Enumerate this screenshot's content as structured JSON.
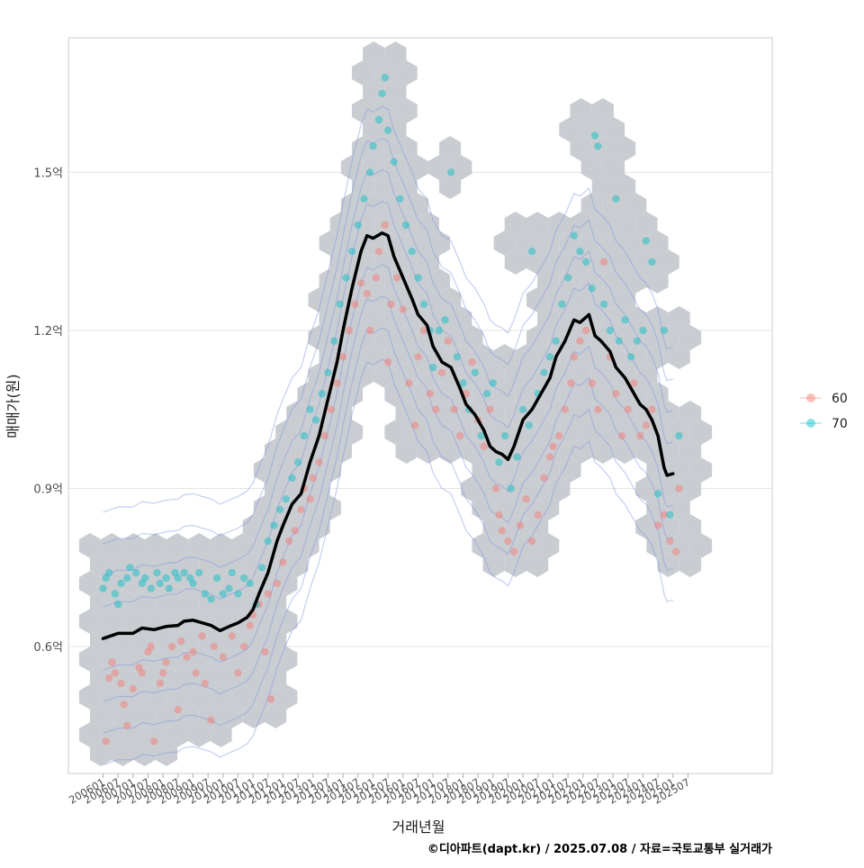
{
  "chart_data": {
    "type": "scatter",
    "xlabel": "거래년월",
    "ylabel": "매매가(원)",
    "caption": "©디아파트(dapt.kr) / 2025.07.08 / 자료=국토교통부 실거래가",
    "x_ticks": [
      "200601",
      "200607",
      "200701",
      "200707",
      "200801",
      "200807",
      "200901",
      "200907",
      "201001",
      "201007",
      "201101",
      "201107",
      "201201",
      "201207",
      "201301",
      "201307",
      "201401",
      "201407",
      "201501",
      "201507",
      "201601",
      "201607",
      "201701",
      "201707",
      "201801",
      "201807",
      "201901",
      "201907",
      "202001",
      "202007",
      "202101",
      "202107",
      "202201",
      "202207",
      "202301",
      "202307",
      "202401",
      "202407",
      "202501",
      "202507"
    ],
    "y_ticks": [
      {
        "value": 0.6,
        "label": "0.6억"
      },
      {
        "value": 0.9,
        "label": "0.9억"
      },
      {
        "value": 1.2,
        "label": "1.2억"
      },
      {
        "value": 1.5,
        "label": "1.5억"
      }
    ],
    "xlim": [
      2005.5,
      2026.8
    ],
    "ylim": [
      0.365,
      1.755
    ],
    "grid": true,
    "legend_position": "right",
    "legend": [
      {
        "name": "60",
        "color": "#F8766D"
      },
      {
        "name": "70",
        "color": "#00BFC4"
      }
    ],
    "series": [
      {
        "name": "60",
        "points": [
          [
            2006.1,
            0.42
          ],
          [
            2006.2,
            0.54
          ],
          [
            2006.3,
            0.57
          ],
          [
            2006.4,
            0.55
          ],
          [
            2006.6,
            0.53
          ],
          [
            2006.7,
            0.49
          ],
          [
            2006.8,
            0.45
          ],
          [
            2007.0,
            0.52
          ],
          [
            2007.2,
            0.56
          ],
          [
            2007.3,
            0.55
          ],
          [
            2007.5,
            0.59
          ],
          [
            2007.6,
            0.6
          ],
          [
            2007.7,
            0.42
          ],
          [
            2007.9,
            0.53
          ],
          [
            2008.0,
            0.55
          ],
          [
            2008.1,
            0.57
          ],
          [
            2008.3,
            0.6
          ],
          [
            2008.5,
            0.48
          ],
          [
            2008.6,
            0.61
          ],
          [
            2008.8,
            0.58
          ],
          [
            2009.0,
            0.59
          ],
          [
            2009.1,
            0.55
          ],
          [
            2009.3,
            0.62
          ],
          [
            2009.4,
            0.53
          ],
          [
            2009.6,
            0.46
          ],
          [
            2009.7,
            0.6
          ],
          [
            2010.0,
            0.58
          ],
          [
            2010.3,
            0.62
          ],
          [
            2010.5,
            0.55
          ],
          [
            2010.7,
            0.6
          ],
          [
            2010.9,
            0.64
          ],
          [
            2011.0,
            0.66
          ],
          [
            2011.2,
            0.68
          ],
          [
            2011.4,
            0.59
          ],
          [
            2011.5,
            0.7
          ],
          [
            2011.6,
            0.5
          ],
          [
            2011.8,
            0.72
          ],
          [
            2012.0,
            0.76
          ],
          [
            2012.2,
            0.8
          ],
          [
            2012.4,
            0.82
          ],
          [
            2012.6,
            0.86
          ],
          [
            2012.7,
            0.9
          ],
          [
            2012.9,
            0.88
          ],
          [
            2013.0,
            0.92
          ],
          [
            2013.2,
            0.95
          ],
          [
            2013.4,
            1.0
          ],
          [
            2013.6,
            1.05
          ],
          [
            2013.8,
            1.1
          ],
          [
            2014.0,
            1.15
          ],
          [
            2014.2,
            1.2
          ],
          [
            2014.4,
            1.25
          ],
          [
            2014.6,
            1.29
          ],
          [
            2014.8,
            1.27
          ],
          [
            2014.9,
            1.2
          ],
          [
            2015.1,
            1.3
          ],
          [
            2015.2,
            1.35
          ],
          [
            2015.4,
            1.4
          ],
          [
            2015.5,
            1.14
          ],
          [
            2015.6,
            1.25
          ],
          [
            2015.8,
            1.3
          ],
          [
            2016.0,
            1.24
          ],
          [
            2016.2,
            1.1
          ],
          [
            2016.4,
            1.02
          ],
          [
            2016.5,
            1.15
          ],
          [
            2016.7,
            1.2
          ],
          [
            2016.9,
            1.08
          ],
          [
            2017.1,
            1.05
          ],
          [
            2017.3,
            1.12
          ],
          [
            2017.5,
            1.18
          ],
          [
            2017.7,
            1.05
          ],
          [
            2017.9,
            1.0
          ],
          [
            2018.1,
            1.08
          ],
          [
            2018.3,
            1.14
          ],
          [
            2018.5,
            1.03
          ],
          [
            2018.7,
            0.98
          ],
          [
            2018.9,
            1.05
          ],
          [
            2019.1,
            0.9
          ],
          [
            2019.2,
            0.85
          ],
          [
            2019.3,
            0.82
          ],
          [
            2019.5,
            0.8
          ],
          [
            2019.7,
            0.78
          ],
          [
            2019.9,
            0.83
          ],
          [
            2020.1,
            0.88
          ],
          [
            2020.3,
            0.8
          ],
          [
            2020.5,
            0.85
          ],
          [
            2020.7,
            0.92
          ],
          [
            2020.9,
            0.96
          ],
          [
            2021.0,
            0.98
          ],
          [
            2021.2,
            1.0
          ],
          [
            2021.4,
            1.05
          ],
          [
            2021.6,
            1.1
          ],
          [
            2021.7,
            1.15
          ],
          [
            2021.9,
            1.18
          ],
          [
            2022.1,
            1.2
          ],
          [
            2022.3,
            1.1
          ],
          [
            2022.5,
            1.05
          ],
          [
            2022.7,
            1.33
          ],
          [
            2022.9,
            1.15
          ],
          [
            2023.1,
            1.08
          ],
          [
            2023.3,
            1.0
          ],
          [
            2023.5,
            1.05
          ],
          [
            2023.7,
            1.1
          ],
          [
            2023.9,
            1.0
          ],
          [
            2024.1,
            1.02
          ],
          [
            2024.3,
            1.05
          ],
          [
            2024.5,
            0.83
          ],
          [
            2024.7,
            0.85
          ],
          [
            2024.9,
            0.8
          ],
          [
            2025.1,
            0.78
          ],
          [
            2025.2,
            0.9
          ]
        ]
      },
      {
        "name": "70",
        "points": [
          [
            2006.0,
            0.71
          ],
          [
            2006.1,
            0.73
          ],
          [
            2006.2,
            0.74
          ],
          [
            2006.4,
            0.7
          ],
          [
            2006.5,
            0.68
          ],
          [
            2006.6,
            0.72
          ],
          [
            2006.8,
            0.73
          ],
          [
            2006.9,
            0.75
          ],
          [
            2007.1,
            0.74
          ],
          [
            2007.3,
            0.72
          ],
          [
            2007.4,
            0.73
          ],
          [
            2007.6,
            0.71
          ],
          [
            2007.8,
            0.74
          ],
          [
            2007.9,
            0.72
          ],
          [
            2008.1,
            0.73
          ],
          [
            2008.2,
            0.71
          ],
          [
            2008.4,
            0.74
          ],
          [
            2008.5,
            0.73
          ],
          [
            2008.7,
            0.74
          ],
          [
            2008.9,
            0.73
          ],
          [
            2009.0,
            0.72
          ],
          [
            2009.2,
            0.74
          ],
          [
            2009.4,
            0.7
          ],
          [
            2009.6,
            0.69
          ],
          [
            2009.8,
            0.73
          ],
          [
            2010.0,
            0.7
          ],
          [
            2010.2,
            0.71
          ],
          [
            2010.3,
            0.74
          ],
          [
            2010.5,
            0.7
          ],
          [
            2010.7,
            0.73
          ],
          [
            2010.9,
            0.72
          ],
          [
            2011.1,
            0.68
          ],
          [
            2011.3,
            0.75
          ],
          [
            2011.5,
            0.8
          ],
          [
            2011.7,
            0.83
          ],
          [
            2011.9,
            0.86
          ],
          [
            2012.1,
            0.88
          ],
          [
            2012.3,
            0.92
          ],
          [
            2012.5,
            0.95
          ],
          [
            2012.7,
            1.0
          ],
          [
            2012.9,
            1.05
          ],
          [
            2013.1,
            1.03
          ],
          [
            2013.3,
            1.08
          ],
          [
            2013.5,
            1.12
          ],
          [
            2013.7,
            1.18
          ],
          [
            2013.9,
            1.25
          ],
          [
            2014.1,
            1.3
          ],
          [
            2014.3,
            1.35
          ],
          [
            2014.5,
            1.4
          ],
          [
            2014.7,
            1.45
          ],
          [
            2014.9,
            1.5
          ],
          [
            2015.0,
            1.55
          ],
          [
            2015.2,
            1.6
          ],
          [
            2015.3,
            1.65
          ],
          [
            2015.4,
            1.68
          ],
          [
            2015.5,
            1.58
          ],
          [
            2015.7,
            1.52
          ],
          [
            2015.9,
            1.45
          ],
          [
            2016.1,
            1.4
          ],
          [
            2016.3,
            1.35
          ],
          [
            2016.5,
            1.3
          ],
          [
            2016.7,
            1.25
          ],
          [
            2016.9,
            1.2
          ],
          [
            2017.0,
            1.13
          ],
          [
            2017.2,
            1.2
          ],
          [
            2017.4,
            1.22
          ],
          [
            2017.6,
            1.5
          ],
          [
            2017.8,
            1.15
          ],
          [
            2018.0,
            1.1
          ],
          [
            2018.2,
            1.05
          ],
          [
            2018.4,
            1.12
          ],
          [
            2018.6,
            1.0
          ],
          [
            2018.8,
            1.08
          ],
          [
            2019.0,
            1.1
          ],
          [
            2019.2,
            0.95
          ],
          [
            2019.4,
            1.0
          ],
          [
            2019.6,
            0.9
          ],
          [
            2019.8,
            0.96
          ],
          [
            2020.0,
            1.05
          ],
          [
            2020.2,
            1.02
          ],
          [
            2020.3,
            1.35
          ],
          [
            2020.5,
            1.08
          ],
          [
            2020.7,
            1.12
          ],
          [
            2020.9,
            1.15
          ],
          [
            2021.1,
            1.18
          ],
          [
            2021.3,
            1.25
          ],
          [
            2021.5,
            1.3
          ],
          [
            2021.7,
            1.38
          ],
          [
            2021.9,
            1.35
          ],
          [
            2022.1,
            1.33
          ],
          [
            2022.3,
            1.28
          ],
          [
            2022.4,
            1.57
          ],
          [
            2022.5,
            1.55
          ],
          [
            2022.7,
            1.25
          ],
          [
            2022.9,
            1.2
          ],
          [
            2023.1,
            1.45
          ],
          [
            2023.2,
            1.18
          ],
          [
            2023.4,
            1.22
          ],
          [
            2023.6,
            1.15
          ],
          [
            2023.8,
            1.18
          ],
          [
            2024.0,
            1.2
          ],
          [
            2024.1,
            1.37
          ],
          [
            2024.3,
            1.33
          ],
          [
            2024.5,
            0.89
          ],
          [
            2024.7,
            1.2
          ],
          [
            2024.9,
            0.85
          ],
          [
            2025.2,
            1.0
          ]
        ]
      }
    ],
    "trend_line": {
      "color": "#000000",
      "points": [
        [
          2006.0,
          0.615
        ],
        [
          2006.5,
          0.625
        ],
        [
          2007.0,
          0.625
        ],
        [
          2007.3,
          0.635
        ],
        [
          2007.7,
          0.632
        ],
        [
          2008.1,
          0.638
        ],
        [
          2008.5,
          0.64
        ],
        [
          2008.7,
          0.648
        ],
        [
          2009.0,
          0.65
        ],
        [
          2009.3,
          0.645
        ],
        [
          2009.6,
          0.64
        ],
        [
          2009.9,
          0.63
        ],
        [
          2010.2,
          0.638
        ],
        [
          2010.5,
          0.645
        ],
        [
          2010.8,
          0.655
        ],
        [
          2011.0,
          0.67
        ],
        [
          2011.2,
          0.7
        ],
        [
          2011.5,
          0.74
        ],
        [
          2011.8,
          0.8
        ],
        [
          2012.0,
          0.83
        ],
        [
          2012.3,
          0.87
        ],
        [
          2012.6,
          0.89
        ],
        [
          2012.9,
          0.95
        ],
        [
          2013.2,
          1.0
        ],
        [
          2013.5,
          1.07
        ],
        [
          2013.8,
          1.14
        ],
        [
          2014.0,
          1.2
        ],
        [
          2014.3,
          1.28
        ],
        [
          2014.6,
          1.35
        ],
        [
          2014.8,
          1.38
        ],
        [
          2015.0,
          1.375
        ],
        [
          2015.3,
          1.385
        ],
        [
          2015.5,
          1.38
        ],
        [
          2015.7,
          1.34
        ],
        [
          2016.0,
          1.3
        ],
        [
          2016.3,
          1.26
        ],
        [
          2016.5,
          1.23
        ],
        [
          2016.8,
          1.21
        ],
        [
          2017.0,
          1.17
        ],
        [
          2017.3,
          1.14
        ],
        [
          2017.6,
          1.13
        ],
        [
          2017.9,
          1.09
        ],
        [
          2018.1,
          1.06
        ],
        [
          2018.4,
          1.04
        ],
        [
          2018.7,
          1.01
        ],
        [
          2018.9,
          0.98
        ],
        [
          2019.1,
          0.97
        ],
        [
          2019.3,
          0.965
        ],
        [
          2019.5,
          0.955
        ],
        [
          2019.7,
          0.98
        ],
        [
          2020.0,
          1.03
        ],
        [
          2020.3,
          1.05
        ],
        [
          2020.6,
          1.08
        ],
        [
          2020.9,
          1.11
        ],
        [
          2021.1,
          1.15
        ],
        [
          2021.4,
          1.18
        ],
        [
          2021.7,
          1.22
        ],
        [
          2021.9,
          1.215
        ],
        [
          2022.2,
          1.23
        ],
        [
          2022.4,
          1.19
        ],
        [
          2022.6,
          1.18
        ],
        [
          2022.9,
          1.16
        ],
        [
          2023.1,
          1.13
        ],
        [
          2023.4,
          1.11
        ],
        [
          2023.6,
          1.09
        ],
        [
          2023.9,
          1.06
        ],
        [
          2024.1,
          1.05
        ],
        [
          2024.3,
          1.03
        ],
        [
          2024.5,
          1.0
        ],
        [
          2024.7,
          0.94
        ],
        [
          2024.8,
          0.925
        ],
        [
          2025.0,
          0.928
        ]
      ]
    }
  }
}
